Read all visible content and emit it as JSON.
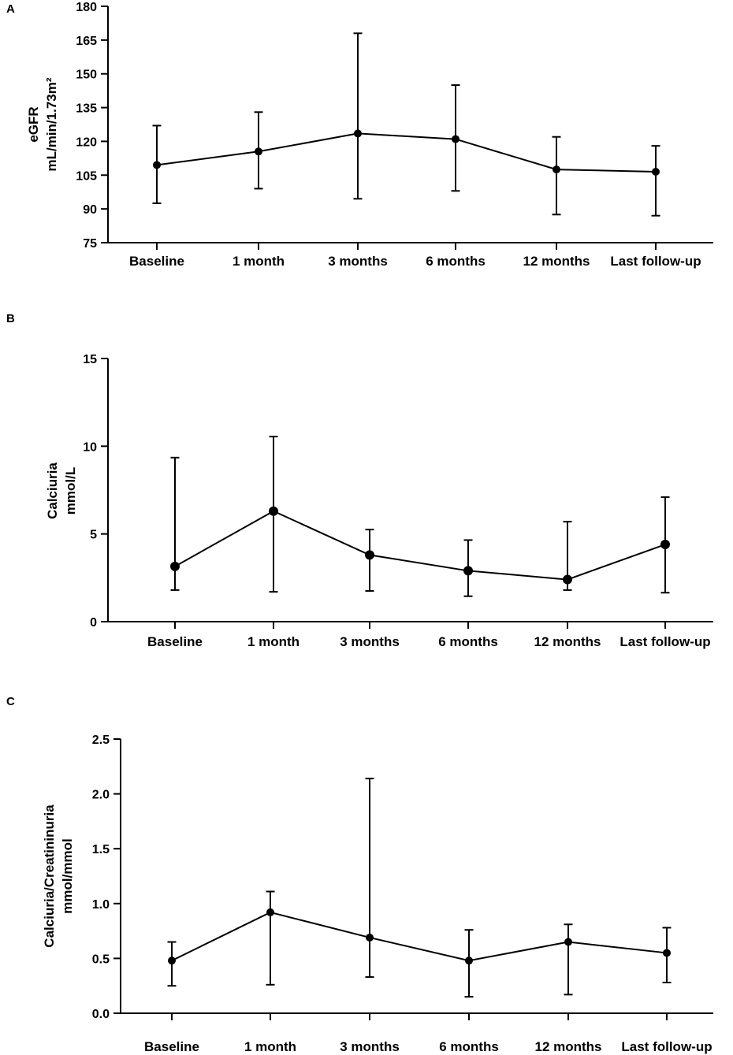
{
  "chart_data": [
    {
      "panel": "A",
      "type": "line",
      "title": "",
      "ylabel": "eGFR",
      "ylabel_unit": "mL/min/1.73m²",
      "xlabel": "",
      "categories": [
        "Baseline",
        "1 month",
        "3 months",
        "6 months",
        "12 months",
        "Last follow-up"
      ],
      "values": [
        109.5,
        115.5,
        123.5,
        121,
        107.5,
        106.5
      ],
      "error_low": [
        92.5,
        99,
        94.5,
        98,
        87.5,
        87
      ],
      "error_high": [
        127,
        133,
        168,
        145,
        122,
        118
      ],
      "ylim": [
        75,
        180
      ],
      "yticks": [
        75,
        90,
        105,
        120,
        135,
        150,
        165,
        180
      ],
      "grid": false
    },
    {
      "panel": "B",
      "type": "line",
      "title": "",
      "ylabel": "Calciuria",
      "ylabel_unit": "mmol/L",
      "xlabel": "",
      "categories": [
        "Baseline",
        "1 month",
        "3 months",
        "6 months",
        "12 months",
        "Last follow-up"
      ],
      "values": [
        3.15,
        6.3,
        3.8,
        2.9,
        2.4,
        4.4
      ],
      "error_low": [
        1.8,
        1.7,
        1.75,
        1.45,
        1.8,
        1.65
      ],
      "error_high": [
        9.35,
        10.55,
        5.25,
        4.65,
        5.7,
        7.1
      ],
      "ylim": [
        0,
        15
      ],
      "yticks": [
        0,
        5,
        10,
        15
      ],
      "grid": false
    },
    {
      "panel": "C",
      "type": "line",
      "title": "",
      "ylabel": "Calciuria/Creatininuria",
      "ylabel_unit": "mmol/mmol",
      "xlabel": "",
      "categories": [
        "Baseline",
        "1 month",
        "3 months",
        "6 months",
        "12 months",
        "Last follow-up"
      ],
      "values": [
        0.48,
        0.92,
        0.69,
        0.48,
        0.65,
        0.55
      ],
      "error_low": [
        0.25,
        0.26,
        0.33,
        0.15,
        0.17,
        0.28
      ],
      "error_high": [
        0.65,
        1.11,
        2.14,
        0.76,
        0.81,
        0.78
      ],
      "ylim": [
        0,
        2.5
      ],
      "yticks": [
        "0.0",
        "0.5",
        "1.0",
        "1.5",
        "2.0",
        "2.5"
      ],
      "grid": false
    }
  ]
}
